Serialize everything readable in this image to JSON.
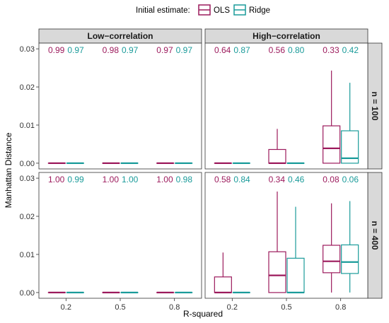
{
  "chart_data": {
    "type": "box",
    "legend": {
      "title": "Initial estimate:",
      "position": "top",
      "entries": [
        {
          "name": "OLS",
          "color": "#9C1A5C"
        },
        {
          "name": "Ridge",
          "color": "#1A9B9A"
        }
      ]
    },
    "xlabel": "R-squared",
    "ylabel": "Manhattan Distance",
    "x_categories": [
      "0.2",
      "0.5",
      "0.8"
    ],
    "ylim": [
      -0.0015,
      0.0315
    ],
    "yticks": [
      0.0,
      0.01,
      0.02,
      0.03
    ],
    "ytick_labels": [
      "0.00",
      "0.01",
      "0.02",
      "0.03"
    ],
    "column_strips": [
      "Low−correlation",
      "High−correlation"
    ],
    "row_strips": [
      "n = 100",
      "n = 400"
    ],
    "panels": [
      {
        "col": 0,
        "row": 0,
        "annotations": {
          "OLS": [
            "0.99",
            "0.98",
            "0.97"
          ],
          "Ridge": [
            "0.97",
            "0.97",
            "0.97"
          ]
        },
        "boxes": {
          "OLS": [
            {
              "min": 0,
              "q1": 0,
              "median": 0,
              "q3": 0,
              "max": 0
            },
            {
              "min": 0,
              "q1": 0,
              "median": 0,
              "q3": 0,
              "max": 0
            },
            {
              "min": 0,
              "q1": 0,
              "median": 0,
              "q3": 0,
              "max": 0
            }
          ],
          "Ridge": [
            {
              "min": 0,
              "q1": 0,
              "median": 0,
              "q3": 0,
              "max": 0
            },
            {
              "min": 0,
              "q1": 0,
              "median": 0,
              "q3": 0,
              "max": 0
            },
            {
              "min": 0,
              "q1": 0,
              "median": 0,
              "q3": 0,
              "max": 0
            }
          ]
        }
      },
      {
        "col": 1,
        "row": 0,
        "annotations": {
          "OLS": [
            "0.64",
            "0.56",
            "0.33"
          ],
          "Ridge": [
            "0.87",
            "0.80",
            "0.42"
          ]
        },
        "boxes": {
          "OLS": [
            {
              "min": 0,
              "q1": 0,
              "median": 0,
              "q3": 0,
              "max": 0
            },
            {
              "min": 0,
              "q1": 0,
              "median": 0,
              "q3": 0.0036,
              "max": 0.009
            },
            {
              "min": 0,
              "q1": 0,
              "median": 0.0039,
              "q3": 0.0098,
              "max": 0.0243
            }
          ],
          "Ridge": [
            {
              "min": 0,
              "q1": 0,
              "median": 0,
              "q3": 0,
              "max": 0
            },
            {
              "min": 0,
              "q1": 0,
              "median": 0,
              "q3": 0,
              "max": 0
            },
            {
              "min": 0,
              "q1": 0,
              "median": 0.0013,
              "q3": 0.0085,
              "max": 0.0211
            }
          ]
        }
      },
      {
        "col": 0,
        "row": 1,
        "annotations": {
          "OLS": [
            "1.00",
            "1.00",
            "1.00"
          ],
          "Ridge": [
            "0.99",
            "1.00",
            "0.98"
          ]
        },
        "boxes": {
          "OLS": [
            {
              "min": 0,
              "q1": 0,
              "median": 0,
              "q3": 0,
              "max": 0
            },
            {
              "min": 0,
              "q1": 0,
              "median": 0,
              "q3": 0,
              "max": 0
            },
            {
              "min": 0,
              "q1": 0,
              "median": 0,
              "q3": 0,
              "max": 0
            }
          ],
          "Ridge": [
            {
              "min": 0,
              "q1": 0,
              "median": 0,
              "q3": 0,
              "max": 0
            },
            {
              "min": 0,
              "q1": 0,
              "median": 0,
              "q3": 0,
              "max": 0
            },
            {
              "min": 0,
              "q1": 0,
              "median": 0,
              "q3": 0,
              "max": 0
            }
          ]
        }
      },
      {
        "col": 1,
        "row": 1,
        "annotations": {
          "OLS": [
            "0.58",
            "0.34",
            "0.08"
          ],
          "Ridge": [
            "0.84",
            "0.46",
            "0.06"
          ]
        },
        "boxes": {
          "OLS": [
            {
              "min": 0,
              "q1": 0,
              "median": 0,
              "q3": 0.0041,
              "max": 0.0105
            },
            {
              "min": 0,
              "q1": 0,
              "median": 0.0045,
              "q3": 0.0107,
              "max": 0.0265
            },
            {
              "min": 0,
              "q1": 0.0052,
              "median": 0.0082,
              "q3": 0.0124,
              "max": 0.0234
            }
          ],
          "Ridge": [
            {
              "min": 0,
              "q1": 0,
              "median": 0,
              "q3": 0,
              "max": 0
            },
            {
              "min": 0,
              "q1": 0,
              "median": 0,
              "q3": 0.009,
              "max": 0.0225
            },
            {
              "min": 0,
              "q1": 0.005,
              "median": 0.008,
              "q3": 0.0125,
              "max": 0.024
            }
          ]
        }
      }
    ]
  }
}
